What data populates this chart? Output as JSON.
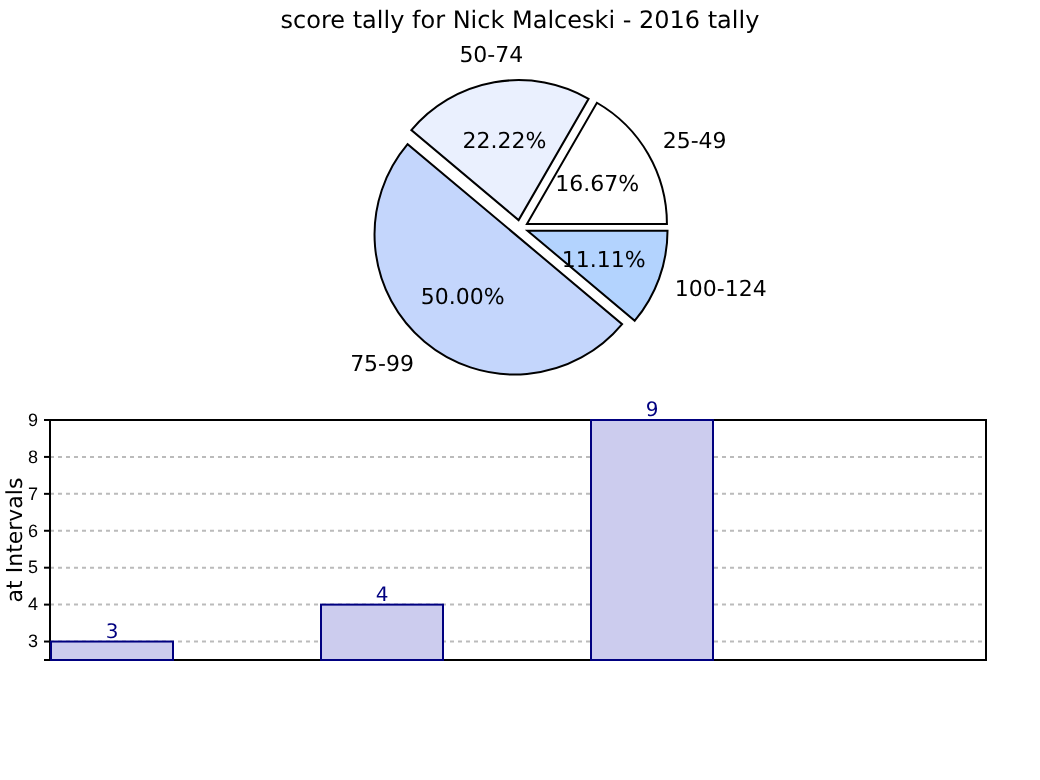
{
  "chart_data": [
    {
      "type": "pie",
      "title": "score tally for Nick Malceski - 2016 tally",
      "categories": [
        "25-49",
        "50-74",
        "75-99",
        "100-124"
      ],
      "values": [
        16.67,
        22.22,
        50.0,
        11.11
      ],
      "colors": [
        "#ffffff",
        "#eaf0fe",
        "#c4d6fc",
        "#b3d3fe"
      ],
      "value_labels": [
        "16.67%",
        "22.22%",
        "50.00%",
        "11.11%"
      ]
    },
    {
      "type": "bar",
      "ylabel": "at Intervals",
      "categories": [
        null,
        null,
        null,
        null
      ],
      "values": [
        3,
        4,
        9,
        null
      ],
      "color": "#ccccee",
      "ylim": [
        2.5,
        9
      ],
      "yticks": [
        3,
        4,
        5,
        6,
        7,
        8,
        9
      ],
      "grid": "y",
      "data_labels": true,
      "tick_labels": "y"
    }
  ]
}
